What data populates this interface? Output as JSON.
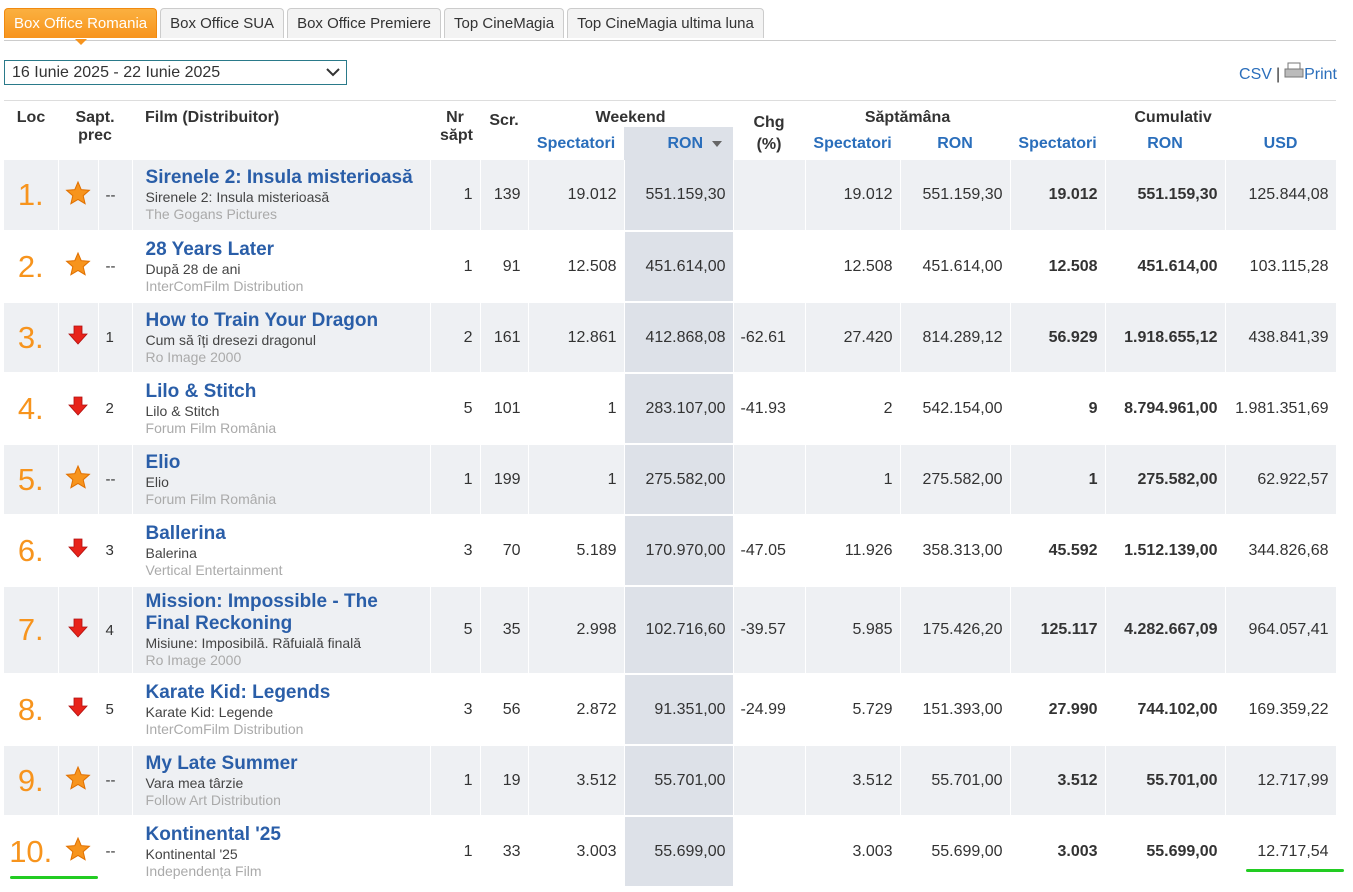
{
  "tabs": [
    "Box Office Romania",
    "Box Office SUA",
    "Box Office Premiere",
    "Top CineMagia",
    "Top CineMagia ultima luna"
  ],
  "date_range": "16 Iunie 2025 - 22 Iunie 2025",
  "export": {
    "csv": "CSV",
    "separator": "|",
    "print": "Print"
  },
  "table": {
    "headers": {
      "loc": "Loc",
      "sapt_prec": "Sapt. prec",
      "film": "Film (Distribuitor)",
      "nr_sapt": "Nr săpt",
      "scr": "Scr.",
      "weekend": "Weekend",
      "chg": "Chg (%)",
      "saptamana": "Săptămâna",
      "cumulativ": "Cumulativ"
    },
    "subheaders": [
      "Spectatori",
      "RON",
      "Spectatori",
      "RON",
      "Spectatori",
      "RON",
      "USD"
    ],
    "rows": [
      {
        "rank": "1.",
        "trend": "new",
        "prev": "--",
        "title": "Sirenele 2: Insula misterioasă",
        "local_title": "Sirenele 2: Insula misterioasă",
        "distributor": "The Gogans Pictures",
        "weeks": 1,
        "screens": 139,
        "weekend_spectators": "19.012",
        "weekend_ron": "551.159,30",
        "chg": null,
        "week_spectators": "19.012",
        "week_ron": "551.159,30",
        "cum_spectators": "19.012",
        "cum_ron": "551.159,30",
        "cum_usd": "125.844,08"
      },
      {
        "rank": "2.",
        "trend": "new",
        "prev": "--",
        "title": "28 Years Later",
        "local_title": "După 28 de ani",
        "distributor": "InterComFilm Distribution",
        "weeks": 1,
        "screens": 91,
        "weekend_spectators": "12.508",
        "weekend_ron": "451.614,00",
        "chg": null,
        "week_spectators": "12.508",
        "week_ron": "451.614,00",
        "cum_spectators": "12.508",
        "cum_ron": "451.614,00",
        "cum_usd": "103.115,28"
      },
      {
        "rank": "3.",
        "trend": "down",
        "prev": 1,
        "title": "How to Train Your Dragon",
        "local_title": "Cum să îți dresezi dragonul",
        "distributor": "Ro Image 2000",
        "weeks": 2,
        "screens": 161,
        "weekend_spectators": "12.861",
        "weekend_ron": "412.868,08",
        "chg": -62.61,
        "week_spectators": "27.420",
        "week_ron": "814.289,12",
        "cum_spectators": "56.929",
        "cum_ron": "1.918.655,12",
        "cum_usd": "438.841,39"
      },
      {
        "rank": "4.",
        "trend": "down",
        "prev": 2,
        "title": "Lilo & Stitch",
        "local_title": "Lilo & Stitch",
        "distributor": "Forum Film România",
        "weeks": 5,
        "screens": 101,
        "weekend_spectators": 1,
        "weekend_ron": "283.107,00",
        "chg": -41.93,
        "week_spectators": 2,
        "week_ron": "542.154,00",
        "cum_spectators": 9,
        "cum_ron": "8.794.961,00",
        "cum_usd": "1.981.351,69"
      },
      {
        "rank": "5.",
        "trend": "new",
        "prev": "--",
        "title": "Elio",
        "local_title": "Elio",
        "distributor": "Forum Film România",
        "weeks": 1,
        "screens": 199,
        "weekend_spectators": 1,
        "weekend_ron": "275.582,00",
        "chg": null,
        "week_spectators": 1,
        "week_ron": "275.582,00",
        "cum_spectators": 1,
        "cum_ron": "275.582,00",
        "cum_usd": "62.922,57"
      },
      {
        "rank": "6.",
        "trend": "down",
        "prev": 3,
        "title": "Ballerina",
        "local_title": "Balerina",
        "distributor": "Vertical Entertainment",
        "weeks": 3,
        "screens": 70,
        "weekend_spectators": "5.189",
        "weekend_ron": "170.970,00",
        "chg": -47.05,
        "week_spectators": "11.926",
        "week_ron": "358.313,00",
        "cum_spectators": "45.592",
        "cum_ron": "1.512.139,00",
        "cum_usd": "344.826,68"
      },
      {
        "rank": "7.",
        "trend": "down",
        "prev": 4,
        "title": "Mission: Impossible - The Final Reckoning",
        "local_title": "Misiune: Imposibilă. Răfuială finală",
        "distributor": "Ro Image 2000",
        "weeks": 5,
        "screens": 35,
        "weekend_spectators": "2.998",
        "weekend_ron": "102.716,60",
        "chg": -39.57,
        "week_spectators": "5.985",
        "week_ron": "175.426,20",
        "cum_spectators": "125.117",
        "cum_ron": "4.282.667,09",
        "cum_usd": "964.057,41"
      },
      {
        "rank": "8.",
        "trend": "down",
        "prev": 5,
        "title": "Karate Kid: Legends",
        "local_title": "Karate Kid: Legende",
        "distributor": "InterComFilm Distribution",
        "weeks": 3,
        "screens": 56,
        "weekend_spectators": "2.872",
        "weekend_ron": "91.351,00",
        "chg": -24.99,
        "week_spectators": "5.729",
        "week_ron": "151.393,00",
        "cum_spectators": "27.990",
        "cum_ron": "744.102,00",
        "cum_usd": "169.359,22"
      },
      {
        "rank": "9.",
        "trend": "new",
        "prev": "--",
        "title": "My Late Summer",
        "local_title": "Vara mea târzie",
        "distributor": "Follow Art Distribution",
        "weeks": 1,
        "screens": 19,
        "weekend_spectators": "3.512",
        "weekend_ron": "55.701,00",
        "chg": null,
        "week_spectators": "3.512",
        "week_ron": "55.701,00",
        "cum_spectators": "3.512",
        "cum_ron": "55.701,00",
        "cum_usd": "12.717,99"
      },
      {
        "rank": "10.",
        "trend": "new",
        "prev": "--",
        "title": "Kontinental '25",
        "local_title": "Kontinental '25",
        "distributor": "Independența Film",
        "weeks": 1,
        "screens": 33,
        "weekend_spectators": "3.003",
        "weekend_ron": "55.699,00",
        "chg": null,
        "week_spectators": "3.003",
        "week_ron": "55.699,00",
        "cum_spectators": "3.003",
        "cum_ron": "55.699,00",
        "cum_usd": "12.717,54"
      }
    ]
  }
}
